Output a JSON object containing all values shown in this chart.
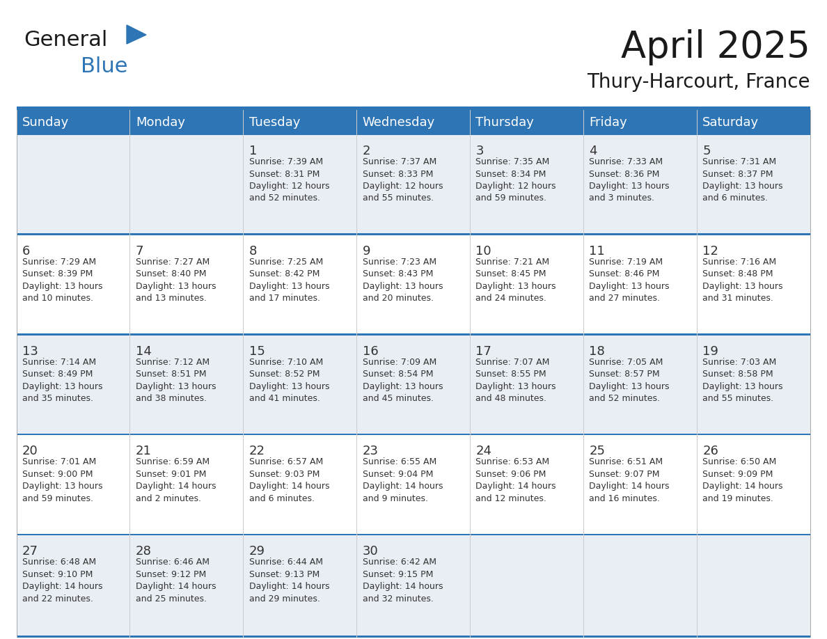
{
  "title": "April 2025",
  "subtitle": "Thury-Harcourt, France",
  "header_bg": "#2E75B6",
  "header_text_color": "#FFFFFF",
  "row_bg_light": "#E9EEF4",
  "row_bg_white": "#FFFFFF",
  "row_divider_color": "#2E75B6",
  "day_number_color": "#333333",
  "cell_text_color": "#333333",
  "days_of_week": [
    "Sunday",
    "Monday",
    "Tuesday",
    "Wednesday",
    "Thursday",
    "Friday",
    "Saturday"
  ],
  "calendar_data": [
    [
      "",
      "",
      "1\nSunrise: 7:39 AM\nSunset: 8:31 PM\nDaylight: 12 hours\nand 52 minutes.",
      "2\nSunrise: 7:37 AM\nSunset: 8:33 PM\nDaylight: 12 hours\nand 55 minutes.",
      "3\nSunrise: 7:35 AM\nSunset: 8:34 PM\nDaylight: 12 hours\nand 59 minutes.",
      "4\nSunrise: 7:33 AM\nSunset: 8:36 PM\nDaylight: 13 hours\nand 3 minutes.",
      "5\nSunrise: 7:31 AM\nSunset: 8:37 PM\nDaylight: 13 hours\nand 6 minutes."
    ],
    [
      "6\nSunrise: 7:29 AM\nSunset: 8:39 PM\nDaylight: 13 hours\nand 10 minutes.",
      "7\nSunrise: 7:27 AM\nSunset: 8:40 PM\nDaylight: 13 hours\nand 13 minutes.",
      "8\nSunrise: 7:25 AM\nSunset: 8:42 PM\nDaylight: 13 hours\nand 17 minutes.",
      "9\nSunrise: 7:23 AM\nSunset: 8:43 PM\nDaylight: 13 hours\nand 20 minutes.",
      "10\nSunrise: 7:21 AM\nSunset: 8:45 PM\nDaylight: 13 hours\nand 24 minutes.",
      "11\nSunrise: 7:19 AM\nSunset: 8:46 PM\nDaylight: 13 hours\nand 27 minutes.",
      "12\nSunrise: 7:16 AM\nSunset: 8:48 PM\nDaylight: 13 hours\nand 31 minutes."
    ],
    [
      "13\nSunrise: 7:14 AM\nSunset: 8:49 PM\nDaylight: 13 hours\nand 35 minutes.",
      "14\nSunrise: 7:12 AM\nSunset: 8:51 PM\nDaylight: 13 hours\nand 38 minutes.",
      "15\nSunrise: 7:10 AM\nSunset: 8:52 PM\nDaylight: 13 hours\nand 41 minutes.",
      "16\nSunrise: 7:09 AM\nSunset: 8:54 PM\nDaylight: 13 hours\nand 45 minutes.",
      "17\nSunrise: 7:07 AM\nSunset: 8:55 PM\nDaylight: 13 hours\nand 48 minutes.",
      "18\nSunrise: 7:05 AM\nSunset: 8:57 PM\nDaylight: 13 hours\nand 52 minutes.",
      "19\nSunrise: 7:03 AM\nSunset: 8:58 PM\nDaylight: 13 hours\nand 55 minutes."
    ],
    [
      "20\nSunrise: 7:01 AM\nSunset: 9:00 PM\nDaylight: 13 hours\nand 59 minutes.",
      "21\nSunrise: 6:59 AM\nSunset: 9:01 PM\nDaylight: 14 hours\nand 2 minutes.",
      "22\nSunrise: 6:57 AM\nSunset: 9:03 PM\nDaylight: 14 hours\nand 6 minutes.",
      "23\nSunrise: 6:55 AM\nSunset: 9:04 PM\nDaylight: 14 hours\nand 9 minutes.",
      "24\nSunrise: 6:53 AM\nSunset: 9:06 PM\nDaylight: 14 hours\nand 12 minutes.",
      "25\nSunrise: 6:51 AM\nSunset: 9:07 PM\nDaylight: 14 hours\nand 16 minutes.",
      "26\nSunrise: 6:50 AM\nSunset: 9:09 PM\nDaylight: 14 hours\nand 19 minutes."
    ],
    [
      "27\nSunrise: 6:48 AM\nSunset: 9:10 PM\nDaylight: 14 hours\nand 22 minutes.",
      "28\nSunrise: 6:46 AM\nSunset: 9:12 PM\nDaylight: 14 hours\nand 25 minutes.",
      "29\nSunrise: 6:44 AM\nSunset: 9:13 PM\nDaylight: 14 hours\nand 29 minutes.",
      "30\nSunrise: 6:42 AM\nSunset: 9:15 PM\nDaylight: 14 hours\nand 32 minutes.",
      "",
      "",
      ""
    ]
  ],
  "logo_text1": "General",
  "logo_text2": "Blue",
  "logo_color1": "#1a1a1a",
  "logo_color2": "#2E75B6",
  "logo_triangle_color": "#2E75B6",
  "title_fontsize": 38,
  "subtitle_fontsize": 20,
  "header_fontsize": 13,
  "day_num_fontsize": 13,
  "cell_fontsize": 9
}
